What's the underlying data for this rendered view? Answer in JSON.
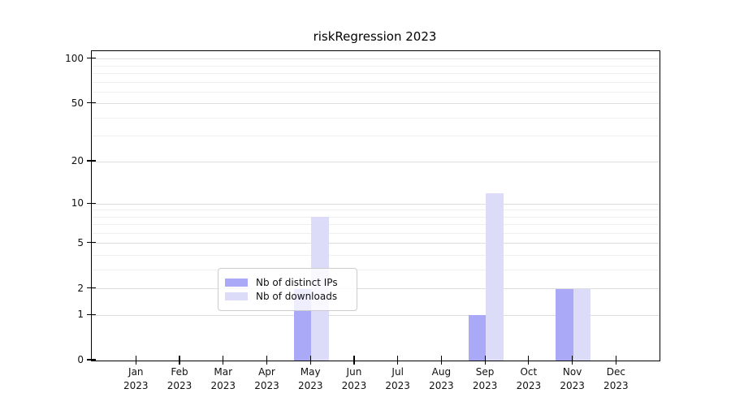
{
  "title": "riskRegression 2023",
  "legend": {
    "items": [
      {
        "label": "Nb of distinct IPs",
        "color": "#a9a9f8"
      },
      {
        "label": "Nb of downloads",
        "color": "#dcdcf9"
      }
    ]
  },
  "colors": {
    "distinct_ips": "#a9a9f8",
    "downloads": "#dcdcf9",
    "grid_major": "#dedede",
    "grid_minor": "#efefef",
    "axis": "#000000",
    "legend_border": "#cccccc"
  },
  "chart_data": {
    "type": "bar",
    "title": "riskRegression 2023",
    "xlabel": "",
    "ylabel": "",
    "categories": [
      "Jan 2023",
      "Feb 2023",
      "Mar 2023",
      "Apr 2023",
      "May 2023",
      "Jun 2023",
      "Jul 2023",
      "Aug 2023",
      "Sep 2023",
      "Oct 2023",
      "Nov 2023",
      "Dec 2023"
    ],
    "series": [
      {
        "name": "Nb of distinct IPs",
        "values": [
          0,
          0,
          0,
          0,
          2,
          0,
          0,
          0,
          1,
          0,
          2,
          0
        ]
      },
      {
        "name": "Nb of downloads",
        "values": [
          0,
          0,
          0,
          0,
          8,
          0,
          0,
          0,
          12,
          0,
          2,
          0
        ]
      }
    ],
    "yscale": "log1p",
    "ylim": [
      0,
      113
    ],
    "yticks": [
      0,
      1,
      2,
      5,
      10,
      20,
      50,
      100
    ],
    "yticks_minor": [
      3,
      4,
      6,
      7,
      8,
      9,
      30,
      40,
      60,
      70,
      80,
      90
    ],
    "grid": "horizontal",
    "legend_position": "lower center"
  }
}
